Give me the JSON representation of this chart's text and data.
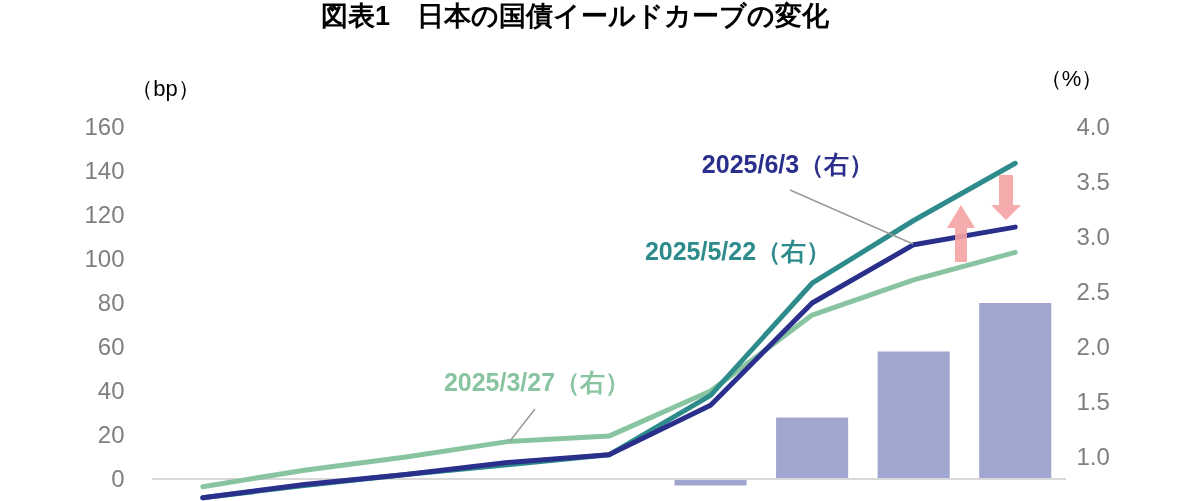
{
  "chart_data": {
    "type": "bar",
    "title": "図表1　日本の国債イールドカーブの変化",
    "ylabel": "（bp）",
    "y2label": "（%）",
    "categories": [
      null,
      null,
      null,
      null,
      null,
      null,
      null,
      null,
      null
    ],
    "series": [
      {
        "color": "#a0a6cf",
        "values": [
          null,
          null,
          null,
          null,
          null,
          -3,
          28,
          58,
          80
        ]
      },
      {
        "type": "line",
        "name": "2025/3/27（右）",
        "color": "#88c4a0",
        "axis": "y2",
        "values": [
          0.73,
          0.88,
          1.0,
          1.14,
          1.19,
          1.6,
          2.29,
          2.61,
          2.86
        ]
      },
      {
        "type": "line",
        "name": "2025/5/22（右）",
        "color": "#2e8b8b",
        "axis": "y2",
        "values": [
          0.63,
          0.74,
          0.84,
          0.93,
          1.02,
          1.56,
          2.58,
          3.15,
          3.67
        ]
      },
      {
        "type": "line",
        "name": "2025/6/3（右）",
        "color": "#2b2f8c",
        "axis": "y2",
        "values": [
          0.63,
          0.75,
          0.84,
          0.95,
          1.02,
          1.47,
          2.4,
          2.93,
          3.09
        ]
      }
    ],
    "ylim": [
      -10,
      160
    ],
    "yticks": [
      0,
      20,
      40,
      60,
      80,
      100,
      120,
      140,
      160
    ],
    "y2lim": [
      0.6,
      4.0
    ],
    "y2ticks": [
      {
        "value": 1,
        "label": "1.0"
      },
      1.5,
      {
        "value": 2,
        "label": "2.0"
      },
      2.5,
      {
        "value": 3,
        "label": "3.0"
      },
      3.5,
      {
        "value": 4,
        "label": "4.0"
      }
    ],
    "ref_lines": [
      {
        "axis": "y",
        "value": 0,
        "color": "#d9d9d9"
      }
    ]
  }
}
